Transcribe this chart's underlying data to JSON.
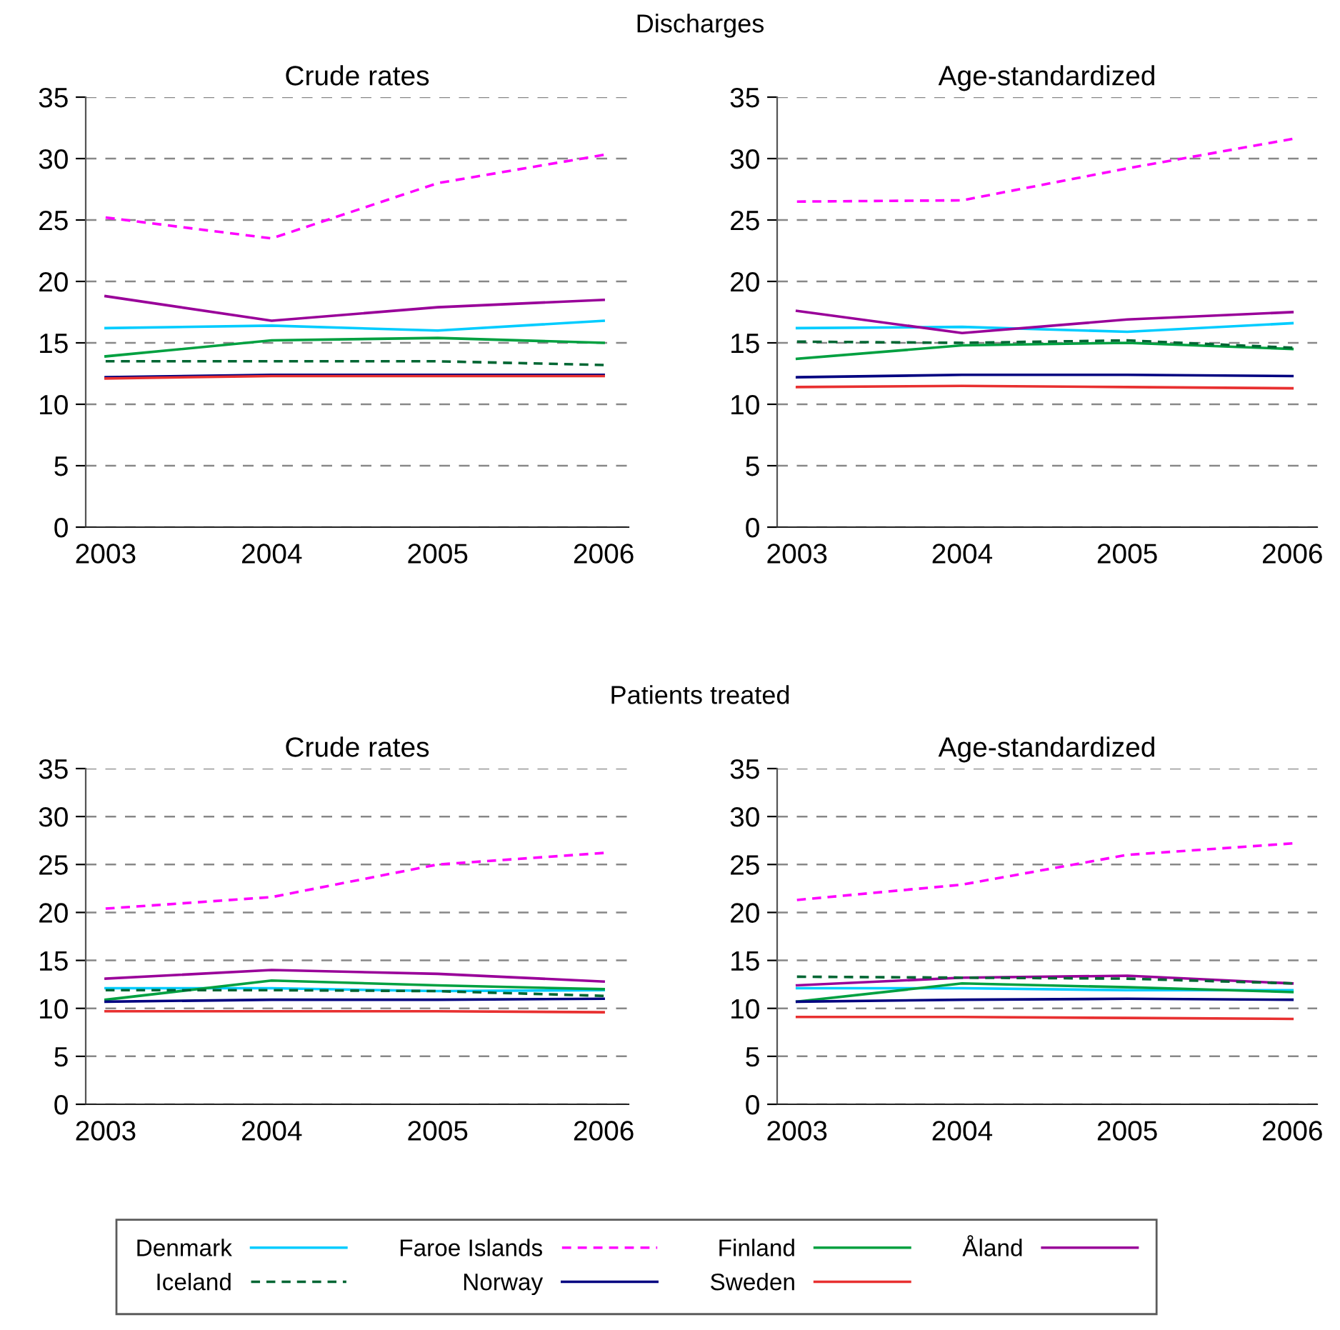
{
  "chart_data": [
    {
      "type": "line",
      "subtitle": "Discharges",
      "title": "Crude rates",
      "categories": [
        "2003",
        "2004",
        "2005",
        "2006"
      ],
      "ylim": [
        0,
        35
      ],
      "yticks": [
        0,
        5,
        10,
        15,
        20,
        25,
        30,
        35
      ],
      "grid": "y",
      "legend": "bottom",
      "series": [
        {
          "name": "Denmark",
          "color": "#00ccff",
          "line_style": "solid",
          "values": [
            16.2,
            16.4,
            16.0,
            16.8
          ]
        },
        {
          "name": "Faroe Islands",
          "color": "#ff00ff",
          "line_style": "dashed",
          "values": [
            25.2,
            23.5,
            28.0,
            30.3
          ]
        },
        {
          "name": "Finland",
          "color": "#00a040",
          "line_style": "solid",
          "values": [
            13.9,
            15.2,
            15.4,
            15.0
          ]
        },
        {
          "name": "Åland",
          "color": "#990099",
          "line_style": "solid",
          "values": [
            18.8,
            16.8,
            17.9,
            18.5
          ]
        },
        {
          "name": "Iceland",
          "color": "#006633",
          "line_style": "dashed",
          "values": [
            13.5,
            13.5,
            13.5,
            13.2
          ]
        },
        {
          "name": "Norway",
          "color": "#000080",
          "line_style": "solid",
          "values": [
            12.2,
            12.4,
            12.4,
            12.4
          ]
        },
        {
          "name": "Sweden",
          "color": "#e83030",
          "line_style": "solid",
          "values": [
            12.1,
            12.3,
            12.3,
            12.3
          ]
        }
      ]
    },
    {
      "type": "line",
      "title": "Age-standardized",
      "categories": [
        "2003",
        "2004",
        "2005",
        "2006"
      ],
      "ylim": [
        0,
        35
      ],
      "yticks": [
        0,
        5,
        10,
        15,
        20,
        25,
        30,
        35
      ],
      "grid": "y",
      "legend": "bottom",
      "series": [
        {
          "name": "Denmark",
          "color": "#00ccff",
          "line_style": "solid",
          "values": [
            16.2,
            16.3,
            15.9,
            16.6
          ]
        },
        {
          "name": "Faroe Islands",
          "color": "#ff00ff",
          "line_style": "dashed",
          "values": [
            26.5,
            26.6,
            29.2,
            31.6
          ]
        },
        {
          "name": "Finland",
          "color": "#00a040",
          "line_style": "solid",
          "values": [
            13.7,
            14.8,
            15.0,
            14.5
          ]
        },
        {
          "name": "Åland",
          "color": "#990099",
          "line_style": "solid",
          "values": [
            17.6,
            15.8,
            16.9,
            17.5
          ]
        },
        {
          "name": "Iceland",
          "color": "#006633",
          "line_style": "dashed",
          "values": [
            15.1,
            15.0,
            15.2,
            14.6
          ]
        },
        {
          "name": "Norway",
          "color": "#000080",
          "line_style": "solid",
          "values": [
            12.2,
            12.4,
            12.4,
            12.3
          ]
        },
        {
          "name": "Sweden",
          "color": "#e83030",
          "line_style": "solid",
          "values": [
            11.4,
            11.5,
            11.4,
            11.3
          ]
        }
      ]
    },
    {
      "type": "line",
      "subtitle": "Patients treated",
      "title": "Crude rates",
      "categories": [
        "2003",
        "2004",
        "2005",
        "2006"
      ],
      "ylim": [
        0,
        35
      ],
      "yticks": [
        0,
        5,
        10,
        15,
        20,
        25,
        30,
        35
      ],
      "grid": "y",
      "legend": "bottom",
      "series": [
        {
          "name": "Denmark",
          "color": "#00ccff",
          "line_style": "solid",
          "values": [
            12.1,
            12.1,
            11.8,
            11.9
          ]
        },
        {
          "name": "Faroe Islands",
          "color": "#ff00ff",
          "line_style": "dashed",
          "values": [
            20.4,
            21.6,
            25.0,
            26.2
          ]
        },
        {
          "name": "Finland",
          "color": "#00a040",
          "line_style": "solid",
          "values": [
            10.9,
            12.9,
            12.4,
            12.0
          ]
        },
        {
          "name": "Åland",
          "color": "#990099",
          "line_style": "solid",
          "values": [
            13.1,
            14.0,
            13.6,
            12.8
          ]
        },
        {
          "name": "Iceland",
          "color": "#006633",
          "line_style": "dashed",
          "values": [
            11.9,
            11.9,
            11.8,
            11.3
          ]
        },
        {
          "name": "Norway",
          "color": "#000080",
          "line_style": "solid",
          "values": [
            10.7,
            10.9,
            10.9,
            11.0
          ]
        },
        {
          "name": "Sweden",
          "color": "#e83030",
          "line_style": "solid",
          "values": [
            9.7,
            9.7,
            9.7,
            9.6
          ]
        }
      ]
    },
    {
      "type": "line",
      "title": "Age-standardized",
      "categories": [
        "2003",
        "2004",
        "2005",
        "2006"
      ],
      "ylim": [
        0,
        35
      ],
      "yticks": [
        0,
        5,
        10,
        15,
        20,
        25,
        30,
        35
      ],
      "grid": "y",
      "legend": "bottom",
      "series": [
        {
          "name": "Denmark",
          "color": "#00ccff",
          "line_style": "solid",
          "values": [
            12.1,
            12.1,
            11.9,
            11.9
          ]
        },
        {
          "name": "Faroe Islands",
          "color": "#ff00ff",
          "line_style": "dashed",
          "values": [
            21.3,
            22.9,
            26.0,
            27.2
          ]
        },
        {
          "name": "Finland",
          "color": "#00a040",
          "line_style": "solid",
          "values": [
            10.7,
            12.6,
            12.2,
            11.7
          ]
        },
        {
          "name": "Åland",
          "color": "#990099",
          "line_style": "solid",
          "values": [
            12.4,
            13.2,
            13.4,
            12.6
          ]
        },
        {
          "name": "Iceland",
          "color": "#006633",
          "line_style": "dashed",
          "values": [
            13.3,
            13.2,
            13.1,
            12.6
          ]
        },
        {
          "name": "Norway",
          "color": "#000080",
          "line_style": "solid",
          "values": [
            10.7,
            10.9,
            11.0,
            10.9
          ]
        },
        {
          "name": "Sweden",
          "color": "#e83030",
          "line_style": "solid",
          "values": [
            9.1,
            9.1,
            9.0,
            8.9
          ]
        }
      ]
    }
  ]
}
